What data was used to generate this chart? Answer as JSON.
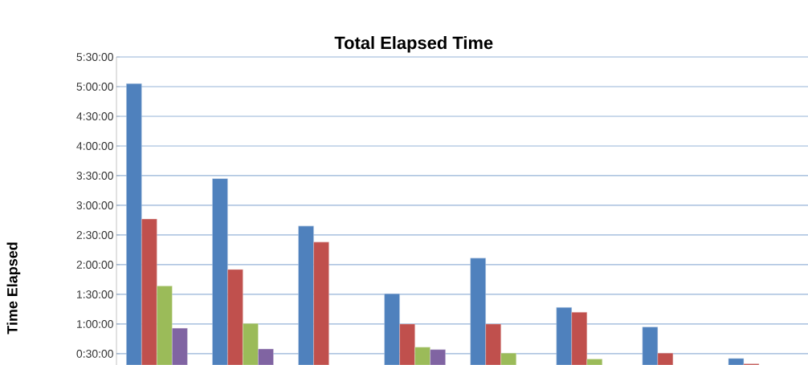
{
  "chart_data": {
    "type": "bar",
    "title": "Total Elapsed Time",
    "ylabel": "Time Elapsed",
    "categories": [
      null,
      null,
      null,
      null,
      null,
      null,
      null,
      null
    ],
    "series": [
      {
        "color": "#4f81bd",
        "values": [
          5.05,
          3.45,
          2.65,
          1.51,
          2.11,
          1.28,
          0.95,
          0.42
        ]
      },
      {
        "color": "#c0504d",
        "values": [
          2.77,
          1.92,
          2.38,
          1.0,
          1.0,
          1.2,
          0.51,
          0.33
        ]
      },
      {
        "color": "#9bbb59",
        "values": [
          1.64,
          1.01,
          null,
          0.61,
          0.51,
          0.41,
          null,
          null
        ]
      },
      {
        "color": "#8064a2",
        "values": [
          0.93,
          0.58,
          null,
          0.57,
          null,
          null,
          null,
          null
        ]
      }
    ],
    "ylim": [
      0.31,
      5.5
    ],
    "yticks": [
      {
        "value": 0.5,
        "label": "0:30:00"
      },
      {
        "value": 1,
        "label": "1:00:00"
      },
      {
        "value": 1.5,
        "label": "1:30:00"
      },
      {
        "value": 2,
        "label": "2:00:00"
      },
      {
        "value": 2.5,
        "label": "2:30:00"
      },
      {
        "value": 3,
        "label": "3:00:00"
      },
      {
        "value": 3.5,
        "label": "3:30:00"
      },
      {
        "value": 4,
        "label": "4:00:00"
      },
      {
        "value": 4.5,
        "label": "4:30:00"
      },
      {
        "value": 5,
        "label": "5:00:00"
      },
      {
        "value": 5.5,
        "label": "5:30:00"
      }
    ],
    "grid": "y"
  }
}
